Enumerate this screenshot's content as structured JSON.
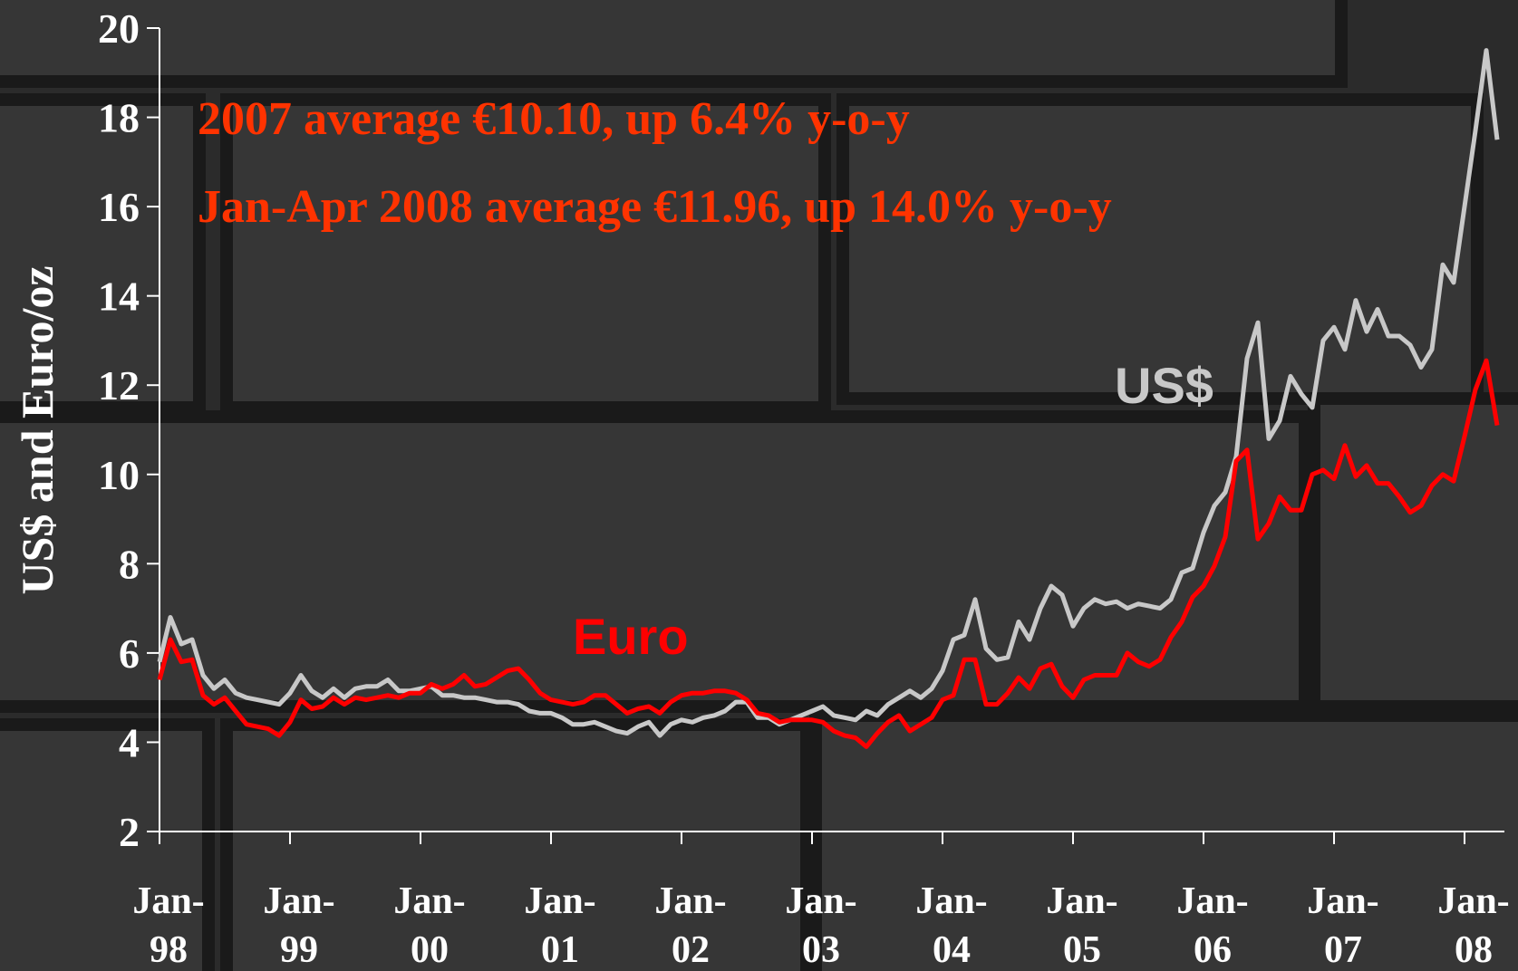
{
  "chart_data": {
    "type": "line",
    "y_label": "US$ and Euro/oz",
    "annotations": [
      {
        "text": "2007 average €10.10, up 6.4% y-o-y",
        "color": "#ff3300"
      },
      {
        "text": "Jan-Apr 2008 average €11.96, up 14.0% y-o-y",
        "color": "#ff3300"
      }
    ],
    "categories": [
      "Jan-98",
      null,
      null,
      null,
      null,
      null,
      null,
      null,
      null,
      null,
      null,
      null,
      "Jan-99",
      null,
      null,
      null,
      null,
      null,
      null,
      null,
      null,
      null,
      null,
      null,
      "Jan-00",
      null,
      null,
      null,
      null,
      null,
      null,
      null,
      null,
      null,
      null,
      null,
      "Jan-01",
      null,
      null,
      null,
      null,
      null,
      null,
      null,
      null,
      null,
      null,
      null,
      "Jan-02",
      null,
      null,
      null,
      null,
      null,
      null,
      null,
      null,
      null,
      null,
      null,
      "Jan-03",
      null,
      null,
      null,
      null,
      null,
      null,
      null,
      null,
      null,
      null,
      null,
      "Jan-04",
      null,
      null,
      null,
      null,
      null,
      null,
      null,
      null,
      null,
      null,
      null,
      "Jan-05",
      null,
      null,
      null,
      null,
      null,
      null,
      null,
      null,
      null,
      null,
      null,
      "Jan-06",
      null,
      null,
      null,
      null,
      null,
      null,
      null,
      null,
      null,
      null,
      null,
      "Jan-07",
      null,
      null,
      null,
      null,
      null,
      null,
      null,
      null,
      null,
      null,
      null,
      "Jan-08",
      null,
      null,
      null
    ],
    "series": [
      {
        "name": "US$",
        "color": "#c8c8c8",
        "values": [
          5.8,
          6.8,
          6.2,
          6.3,
          5.5,
          5.2,
          5.4,
          5.1,
          5.0,
          4.95,
          4.9,
          4.85,
          5.1,
          5.5,
          5.15,
          5.0,
          5.2,
          5.0,
          5.2,
          5.25,
          5.25,
          5.4,
          5.15,
          5.15,
          5.2,
          5.25,
          5.05,
          5.05,
          5.0,
          5.0,
          4.95,
          4.9,
          4.9,
          4.85,
          4.7,
          4.65,
          4.65,
          4.55,
          4.4,
          4.4,
          4.45,
          4.35,
          4.25,
          4.2,
          4.35,
          4.45,
          4.15,
          4.4,
          4.5,
          4.45,
          4.55,
          4.6,
          4.7,
          4.9,
          4.9,
          4.55,
          4.55,
          4.4,
          4.5,
          4.6,
          4.7,
          4.8,
          4.6,
          4.55,
          4.5,
          4.7,
          4.6,
          4.85,
          5.0,
          5.15,
          5.0,
          5.2,
          5.6,
          6.3,
          6.4,
          7.2,
          6.1,
          5.85,
          5.9,
          6.7,
          6.3,
          7.0,
          7.5,
          7.3,
          6.6,
          7.0,
          7.2,
          7.1,
          7.15,
          7.0,
          7.1,
          7.05,
          7.0,
          7.2,
          7.8,
          7.9,
          8.7,
          9.3,
          9.6,
          10.4,
          12.6,
          13.4,
          10.8,
          11.2,
          12.2,
          11.8,
          11.5,
          13.0,
          13.3,
          12.8,
          13.9,
          13.2,
          13.7,
          13.1,
          13.1,
          12.9,
          12.4,
          12.8,
          14.7,
          14.3,
          16.0,
          17.7,
          19.5,
          17.5
        ]
      },
      {
        "name": "Euro",
        "color": "#ff0000",
        "values": [
          5.4,
          6.3,
          5.8,
          5.85,
          5.05,
          4.85,
          5.0,
          4.7,
          4.4,
          4.35,
          4.3,
          4.15,
          4.45,
          4.95,
          4.75,
          4.8,
          5.0,
          4.85,
          5.0,
          4.95,
          5.0,
          5.05,
          5.0,
          5.1,
          5.1,
          5.3,
          5.2,
          5.3,
          5.5,
          5.25,
          5.3,
          5.45,
          5.6,
          5.65,
          5.4,
          5.1,
          4.95,
          4.9,
          4.85,
          4.9,
          5.05,
          5.05,
          4.85,
          4.65,
          4.75,
          4.8,
          4.65,
          4.9,
          5.05,
          5.1,
          5.1,
          5.15,
          5.15,
          5.1,
          4.95,
          4.65,
          4.6,
          4.45,
          4.5,
          4.5,
          4.5,
          4.45,
          4.25,
          4.15,
          4.1,
          3.9,
          4.2,
          4.45,
          4.6,
          4.25,
          4.4,
          4.55,
          4.95,
          5.05,
          5.85,
          5.85,
          4.85,
          4.85,
          5.1,
          5.45,
          5.2,
          5.65,
          5.75,
          5.25,
          5.0,
          5.4,
          5.5,
          5.5,
          5.5,
          6.0,
          5.8,
          5.7,
          5.85,
          6.35,
          6.7,
          7.25,
          7.5,
          7.95,
          8.6,
          10.3,
          10.55,
          8.55,
          8.9,
          9.5,
          9.2,
          9.2,
          10.0,
          10.1,
          9.9,
          10.65,
          9.95,
          10.2,
          9.8,
          9.8,
          9.5,
          9.15,
          9.3,
          9.75,
          10.0,
          9.85,
          10.85,
          11.9,
          12.55,
          11.1
        ]
      }
    ],
    "ylim": [
      2,
      20
    ],
    "yticks": [
      2,
      4,
      6,
      8,
      10,
      12,
      14,
      16,
      18,
      20
    ],
    "grid": false
  }
}
